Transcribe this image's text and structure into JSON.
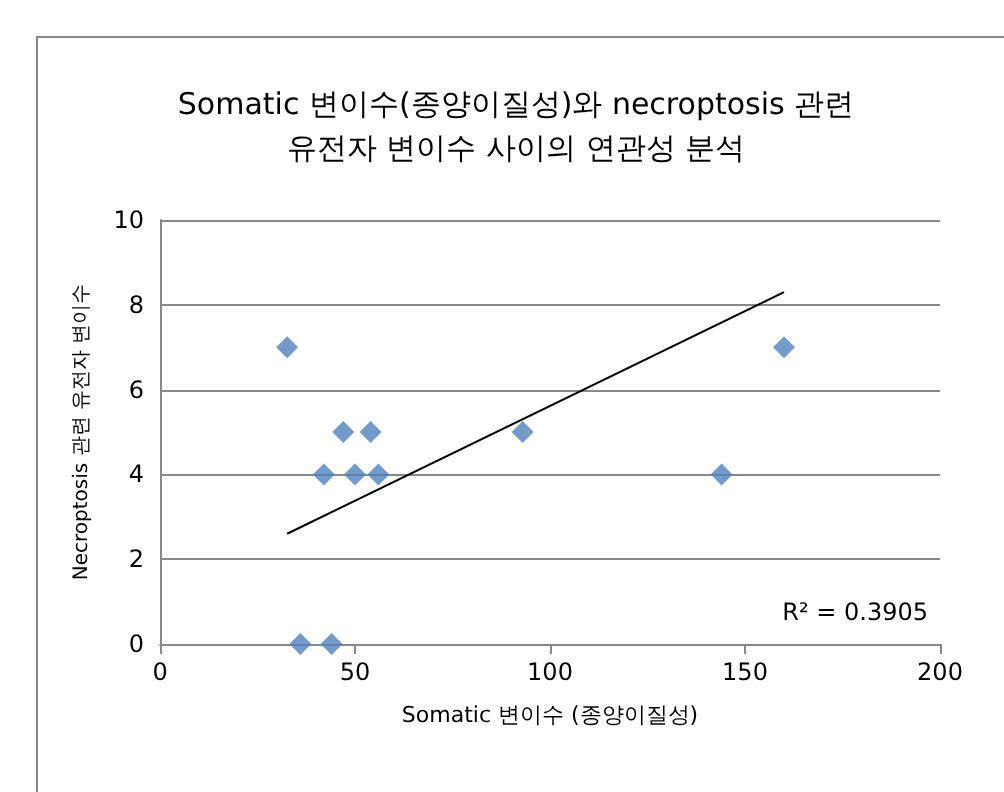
{
  "chart_data": {
    "type": "scatter",
    "title": "Somatic 변이수(종양이질성)와 necroptosis 관련\n유전자 변이수 사이의 연관성 분석",
    "xlabel": "Somatic 변이수 (종양이질성)",
    "ylabel": "Necroptosis 관련 유전자 변이수",
    "series": [
      {
        "color": "#4f81bd",
        "marker": "diamond",
        "x": [
          32.6,
          36,
          44,
          42,
          47,
          50,
          54,
          56,
          93,
          144,
          160
        ],
        "values": [
          7,
          0,
          0,
          4,
          5,
          4,
          5,
          4,
          5,
          4,
          7
        ]
      },
      {
        "type": "line",
        "color": "#000000",
        "x": [
          32.6,
          160
        ],
        "values": [
          2.6,
          8.3
        ]
      }
    ],
    "annotations": [
      "R² = 0.3905"
    ],
    "xlim": [
      0,
      200
    ],
    "xticks": [
      0,
      50,
      100,
      150,
      200
    ],
    "ylim": [
      0,
      10
    ],
    "yticks": [
      0,
      2,
      4,
      6,
      8,
      10
    ],
    "grid": "y"
  }
}
